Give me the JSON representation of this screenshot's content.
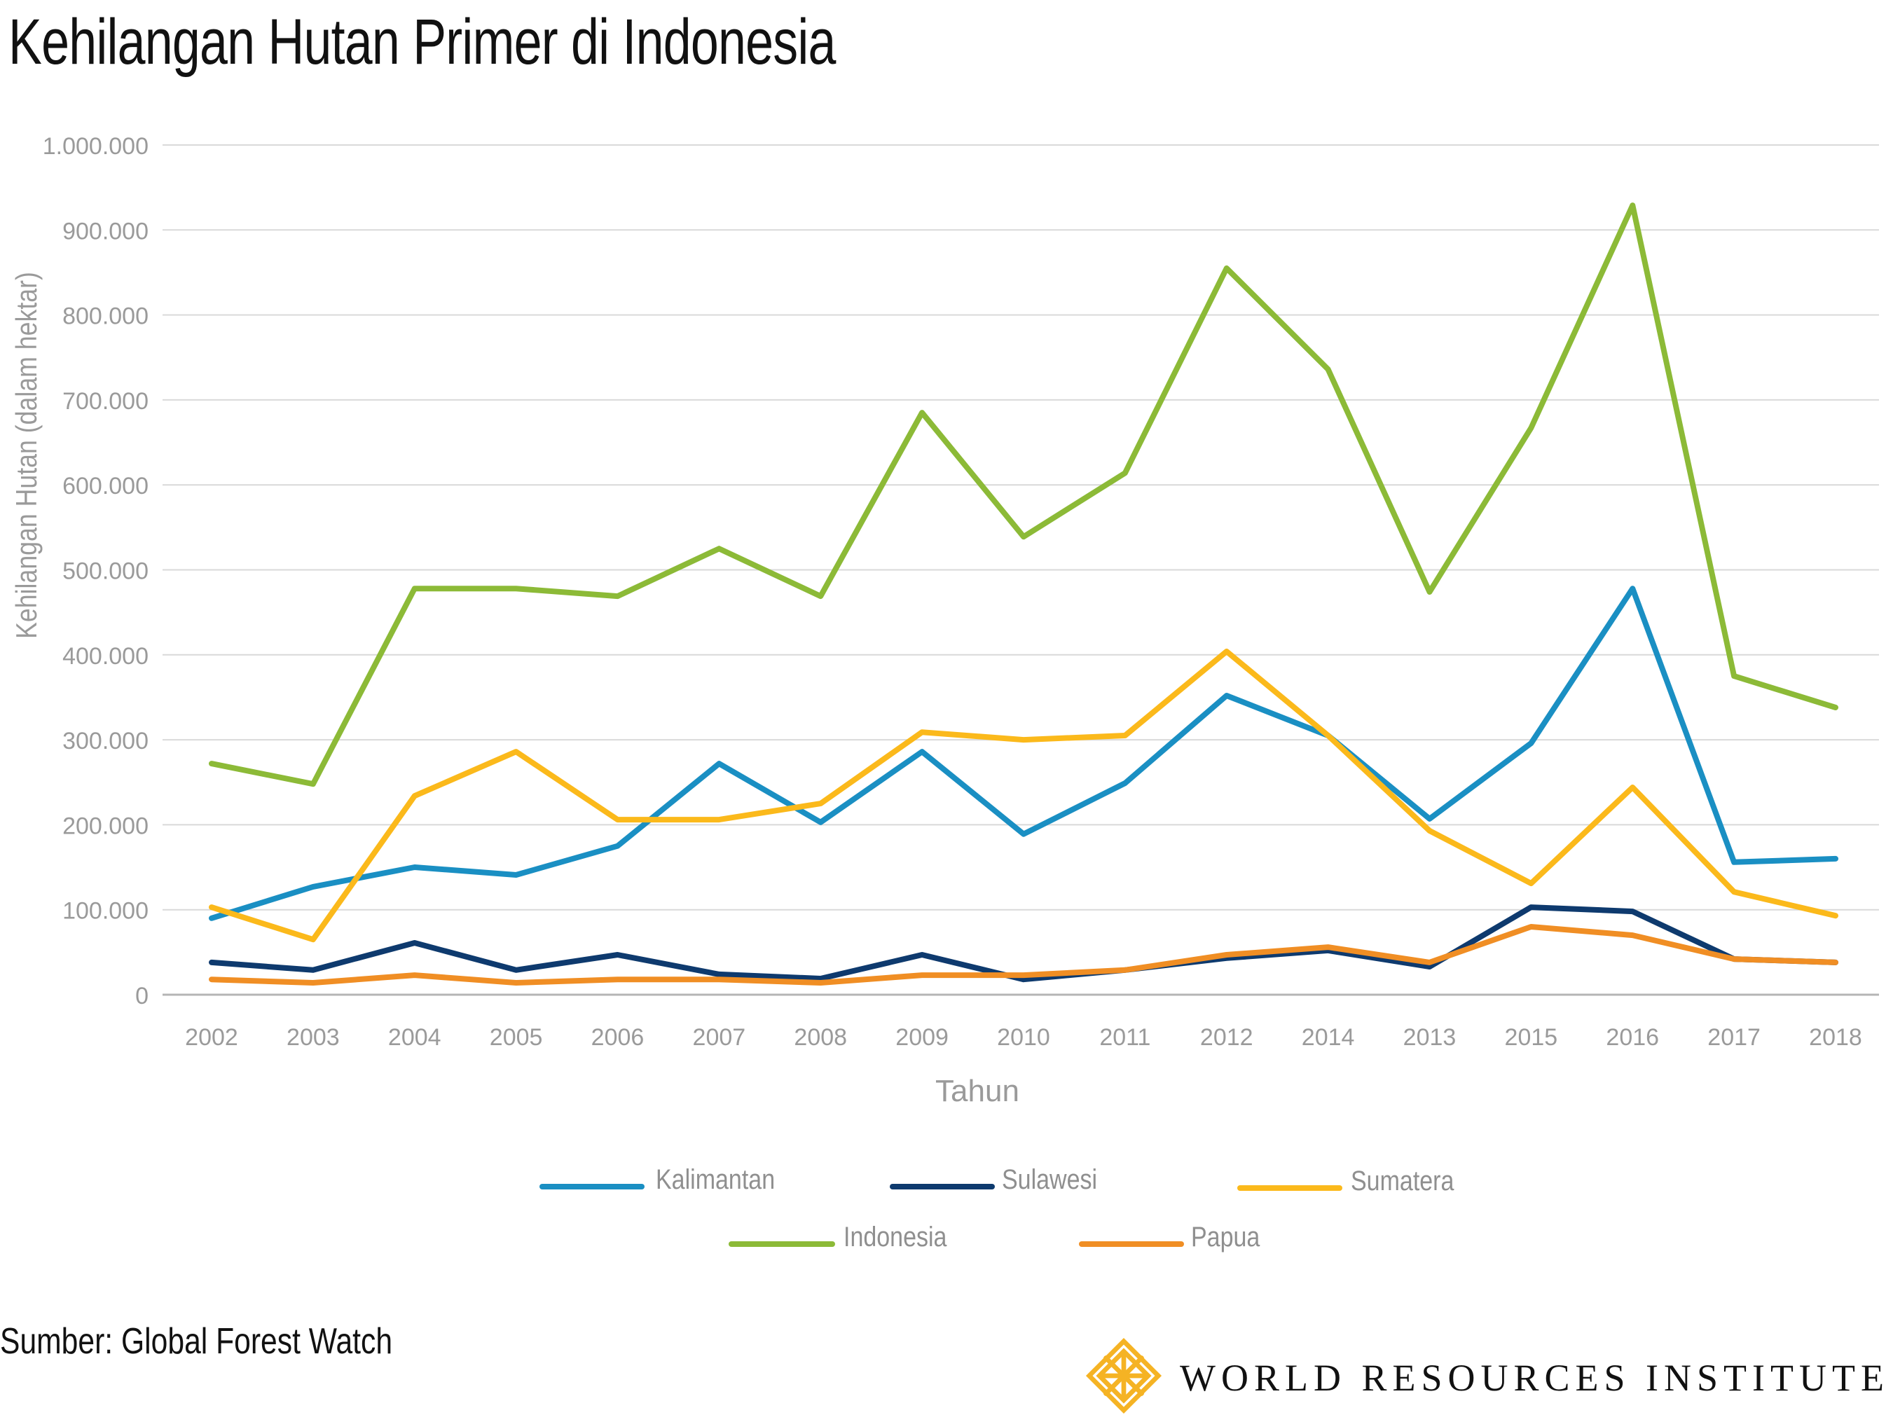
{
  "title": "Kehilangan Hutan Primer di Indonesia",
  "source": "Sumber: Global Forest Watch",
  "brand": "WORLD RESOURCES INSTITUTE",
  "colors": {
    "Kalimantan": "#1a8fc3",
    "Sulawesi": "#0e3a6e",
    "Sumatera": "#fbb91b",
    "Indonesia": "#8cba37",
    "Papua": "#f08e24",
    "grid": "#d9d9d9",
    "axis_text": "#9a9a9a",
    "logo": "#f5b324"
  },
  "chart_data": {
    "type": "line",
    "xlabel": "Tahun",
    "ylabel": "Kehilangan Hutan (dalam hektar)",
    "categories": [
      "2002",
      "2003",
      "2004",
      "2005",
      "2006",
      "2007",
      "2008",
      "2009",
      "2010",
      "2011",
      "2012",
      "2014",
      "2013",
      "2015",
      "2016",
      "2017",
      "2018"
    ],
    "ylim": [
      0,
      1000000
    ],
    "yticks": [
      0,
      100000,
      200000,
      300000,
      400000,
      500000,
      600000,
      700000,
      800000,
      900000,
      1000000
    ],
    "ytick_labels": [
      "0",
      "100.000",
      "200.000",
      "300.000",
      "400.000",
      "500.000",
      "600.000",
      "700.000",
      "800.000",
      "900.000",
      "1.000.000"
    ],
    "grid": true,
    "legend_position": "bottom",
    "series": [
      {
        "name": "Kalimantan",
        "values": [
          90000,
          127000,
          150000,
          141000,
          175000,
          272000,
          203000,
          286000,
          189000,
          249000,
          352000,
          305000,
          207000,
          296000,
          478000,
          156000,
          160000
        ]
      },
      {
        "name": "Sulawesi",
        "values": [
          38000,
          29000,
          61000,
          29000,
          47000,
          24000,
          19000,
          47000,
          18000,
          29000,
          43000,
          52000,
          33000,
          103000,
          98000,
          42000,
          38000
        ]
      },
      {
        "name": "Sumatera",
        "values": [
          103000,
          65000,
          234000,
          286000,
          206000,
          206000,
          225000,
          309000,
          300000,
          305000,
          404000,
          305000,
          193000,
          131000,
          244000,
          121000,
          93000
        ]
      },
      {
        "name": "Indonesia",
        "values": [
          272000,
          248000,
          478000,
          478000,
          469000,
          525000,
          469000,
          685000,
          539000,
          614000,
          855000,
          736000,
          474000,
          667000,
          929000,
          375000,
          338000
        ]
      },
      {
        "name": "Papua",
        "values": [
          18000,
          14000,
          23000,
          14000,
          18000,
          18000,
          14000,
          23000,
          23000,
          29000,
          47000,
          56000,
          38000,
          80000,
          70000,
          42000,
          38000
        ]
      }
    ]
  },
  "legend": [
    {
      "label": "Kalimantan",
      "series": "Kalimantan"
    },
    {
      "label": "Sulawesi",
      "series": "Sulawesi"
    },
    {
      "label": "Sumatera",
      "series": "Sumatera"
    },
    {
      "label": "Indonesia",
      "series": "Indonesia"
    },
    {
      "label": "Papua",
      "series": "Papua"
    }
  ]
}
